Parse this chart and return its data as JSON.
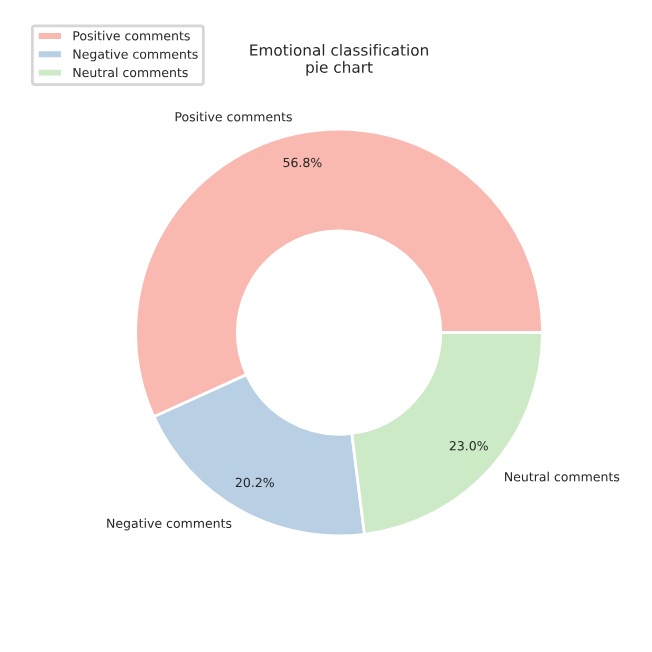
{
  "chart_data": {
    "type": "donut",
    "title": "Emotional classification\npie chart",
    "categories": [
      "Positive comments",
      "Negative comments",
      "Neutral comments"
    ],
    "values": [
      56.8,
      20.2,
      23.0
    ],
    "value_labels": [
      "56.8%",
      "20.2%",
      "23.0%"
    ],
    "colors": [
      "#f9b8b0",
      "#b8cfe4",
      "#cdeac6"
    ],
    "legend": "top left"
  }
}
